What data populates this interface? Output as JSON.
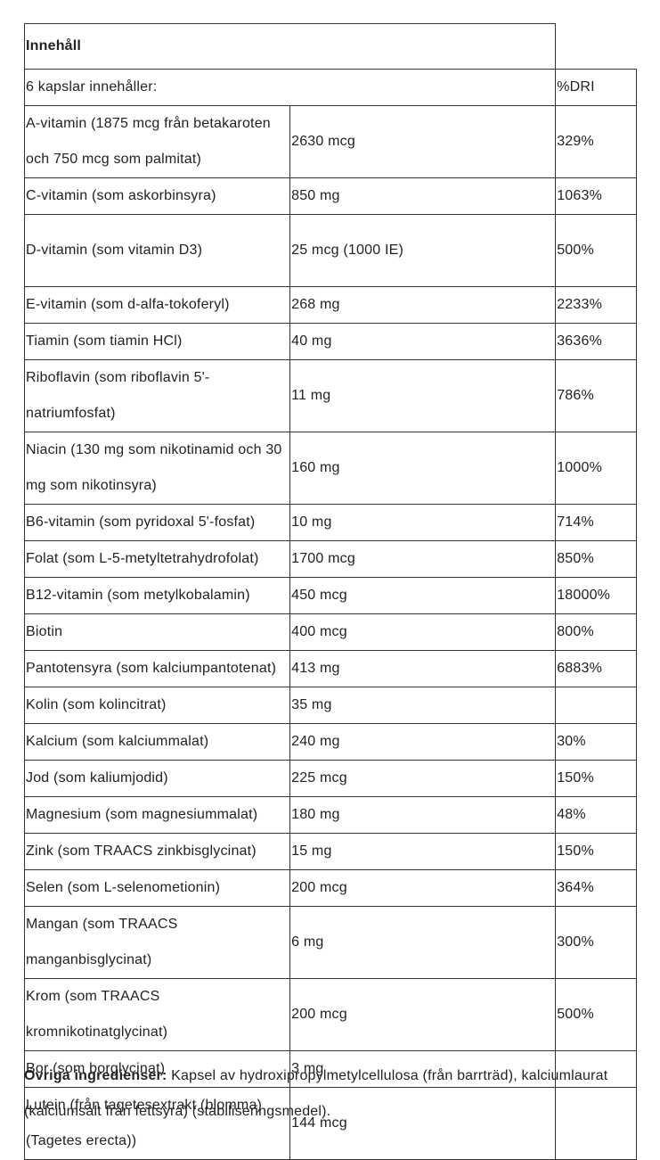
{
  "table": {
    "title": "Innehåll",
    "header": {
      "label": "6 kapslar innehåller:",
      "amount": "",
      "dri": "%DRI"
    },
    "rows": [
      {
        "name": "A-vitamin (1875 mcg från betakaroten och 750 mcg som palmitat)",
        "amount": "2630 mcg",
        "dri": "329%"
      },
      {
        "name": "C-vitamin (som askorbinsyra)",
        "amount": "850 mg",
        "dri": "1063%"
      },
      {
        "name": "D-vitamin (som vitamin D3)",
        "amount": "25 mcg (1000 IE)",
        "dri": "500%"
      },
      {
        "name": "E-vitamin (som d-alfa-tokoferyl)",
        "amount": "268 mg",
        "dri": "2233%"
      },
      {
        "name": "Tiamin (som tiamin HCl)",
        "amount": "40 mg",
        "dri": "3636%"
      },
      {
        "name": "Riboflavin (som riboflavin 5'-natriumfosfat)",
        "amount": "11 mg",
        "dri": "786%"
      },
      {
        "name": "Niacin (130 mg som nikotinamid och 30 mg som nikotinsyra)",
        "amount": "160 mg",
        "dri": "1000%"
      },
      {
        "name": "B6-vitamin (som pyridoxal 5'-fosfat)",
        "amount": "10 mg",
        "dri": "714%"
      },
      {
        "name": "Folat (som L-5-metyltetrahydrofolat)",
        "amount": "1700 mcg",
        "dri": "850%"
      },
      {
        "name": "B12-vitamin (som metylkobalamin)",
        "amount": "450 mcg",
        "dri": "18000%"
      },
      {
        "name": "Biotin",
        "amount": "400 mcg",
        "dri": "800%"
      },
      {
        "name": "Pantotensyra (som kalciumpantotenat)",
        "amount": "413 mg",
        "dri": "6883%"
      },
      {
        "name": "Kolin (som kolincitrat)",
        "amount": "35 mg",
        "dri": ""
      },
      {
        "name": "Kalcium (som kalciummalat)",
        "amount": "240 mg",
        "dri": "30%"
      },
      {
        "name": "Jod (som kaliumjodid)",
        "amount": "225 mcg",
        "dri": "150%"
      },
      {
        "name": "Magnesium (som magnesiummalat)",
        "amount": "180 mg",
        "dri": "48%"
      },
      {
        "name": "Zink (som TRAACS zinkbisglycinat)",
        "amount": "15 mg",
        "dri": "150%"
      },
      {
        "name": "Selen (som L-selenometionin)",
        "amount": "200 mcg",
        "dri": "364%"
      },
      {
        "name": "Mangan (som TRAACS manganbisglycinat)",
        "amount": "6 mg",
        "dri": "300%"
      },
      {
        "name": "Krom (som TRAACS kromnikotinatglycinat)",
        "amount": "200 mcg",
        "dri": "500%"
      },
      {
        "name": "Bor (som borglycinat)",
        "amount": "3 mg",
        "dri": ""
      },
      {
        "name": "Lutein (från tagetesextrakt (blomma) (Tagetes erecta))",
        "amount": "144 mcg",
        "dri": ""
      }
    ]
  },
  "other_ingredients": {
    "label": "Övriga ingredienser:",
    "text": " Kapsel av hydroxipropylmetylcellulosa (från barrträd), kalciumlaurat (kalciumsalt från fettsyra) (stabiliseringsmedel)."
  }
}
